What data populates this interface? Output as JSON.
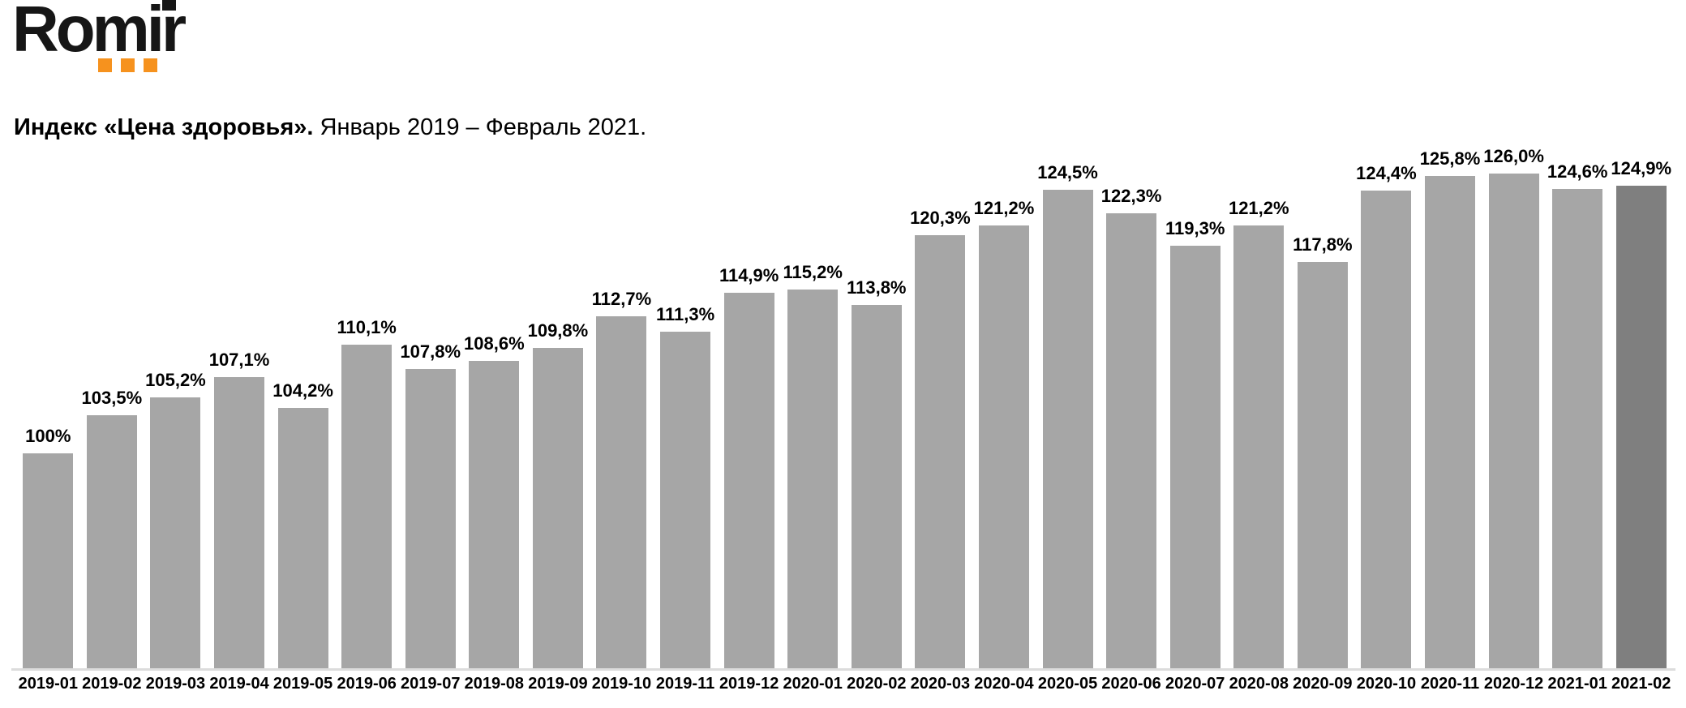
{
  "logo": {
    "text": "Romir",
    "text_color": "#161616",
    "accent_color": "#f6921e",
    "squares_count": 3
  },
  "header": {
    "title": "Индекс «Цена здоровья».",
    "period": "Январь 2019 – Февраль 2021."
  },
  "chart_data": {
    "type": "bar",
    "title": "Индекс «Цена здоровья». Январь 2019 – Февраль 2021.",
    "categories": [
      "2019-01",
      "2019-02",
      "2019-03",
      "2019-04",
      "2019-05",
      "2019-06",
      "2019-07",
      "2019-08",
      "2019-09",
      "2019-10",
      "2019-11",
      "2019-12",
      "2020-01",
      "2020-02",
      "2020-03",
      "2020-04",
      "2020-05",
      "2020-06",
      "2020-07",
      "2020-08",
      "2020-09",
      "2020-10",
      "2020-11",
      "2020-12",
      "2021-01",
      "2021-02"
    ],
    "values": [
      100,
      103.5,
      105.2,
      107.1,
      104.2,
      110.1,
      107.8,
      108.6,
      109.8,
      112.7,
      111.3,
      114.9,
      115.2,
      113.8,
      120.3,
      121.2,
      124.5,
      122.3,
      119.3,
      121.2,
      117.8,
      124.4,
      125.8,
      126.0,
      124.6,
      124.9
    ],
    "value_labels": [
      "100%",
      "103,5%",
      "105,2%",
      "107,1%",
      "104,2%",
      "110,1%",
      "107,8%",
      "108,6%",
      "109,8%",
      "112,7%",
      "111,3%",
      "114,9%",
      "115,2%",
      "113,8%",
      "120,3%",
      "121,2%",
      "124,5%",
      "122,3%",
      "119,3%",
      "121,2%",
      "117,8%",
      "124,4%",
      "125,8%",
      "126,0%",
      "124,6%",
      "124,9%"
    ],
    "xlabel": "",
    "ylabel": "",
    "ylim": [
      80,
      128
    ],
    "grid": false,
    "legend": "none",
    "bar_color": "#a6a6a6",
    "highlight_bar_color": "#7f7f7f",
    "highlight_index": 25,
    "axis_line_color": "#dcdcdc"
  }
}
